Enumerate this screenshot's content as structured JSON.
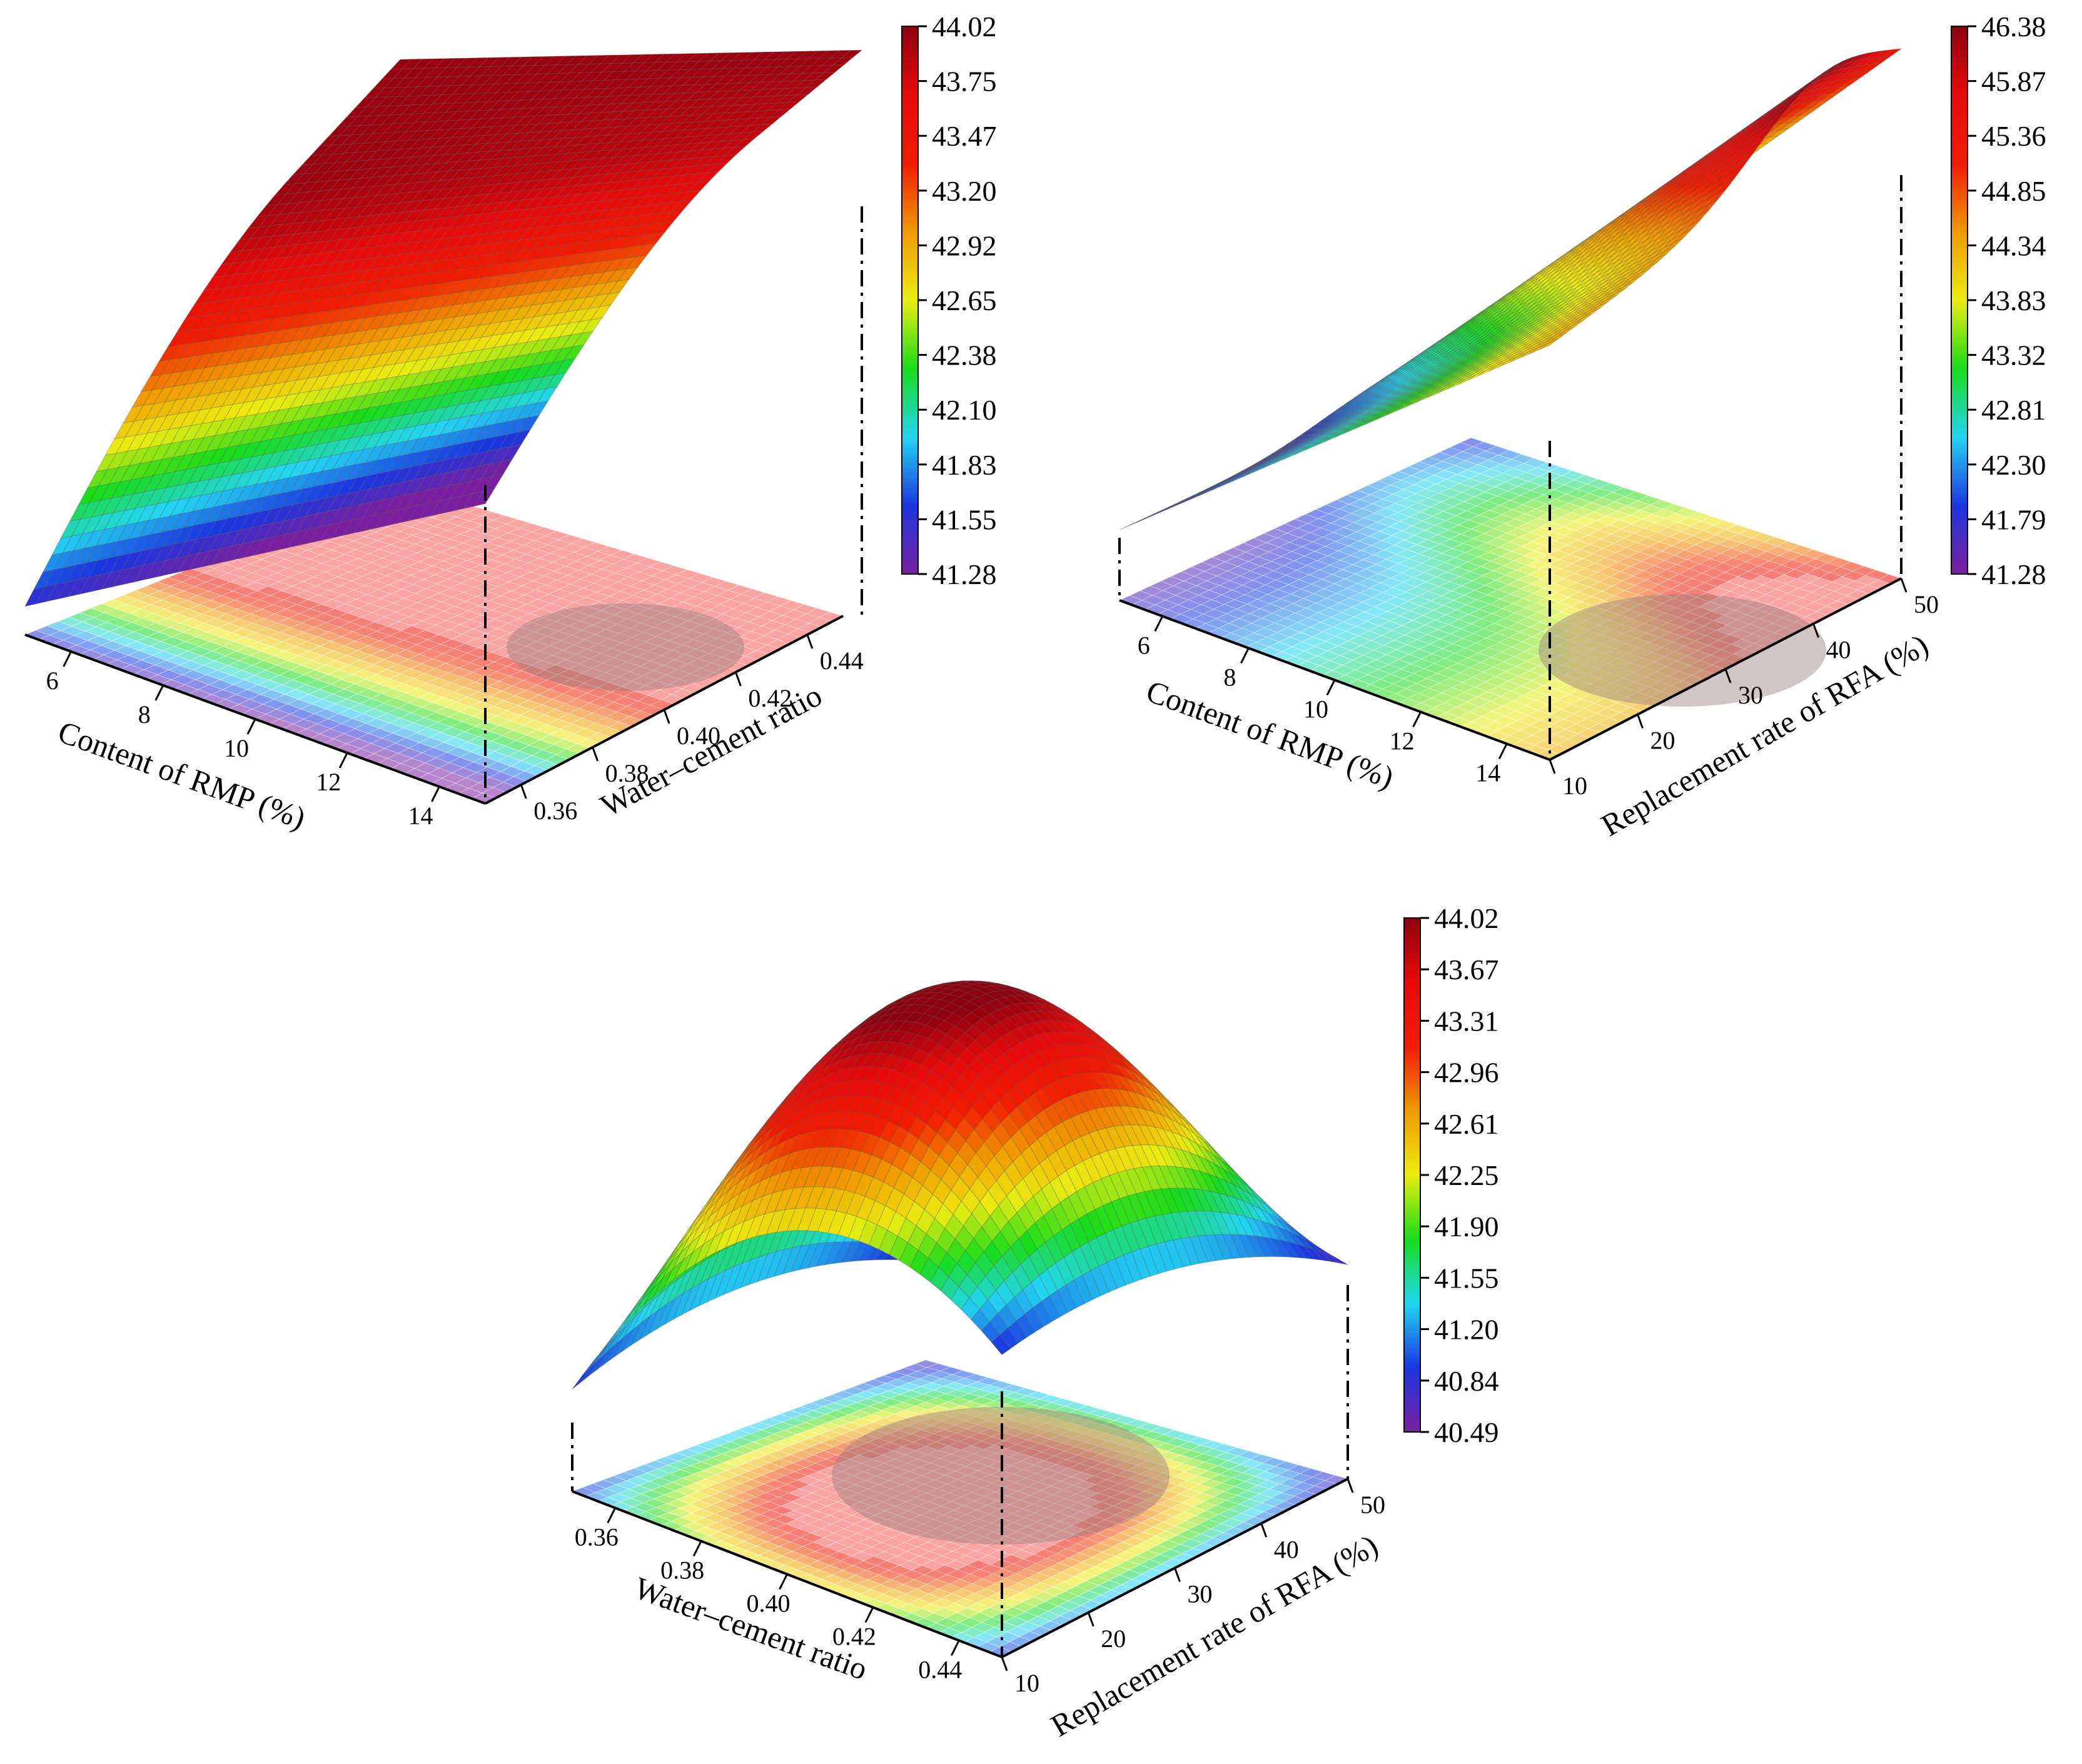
{
  "figure": {
    "title": ""
  },
  "colormap": [
    "#7a1fa0",
    "#1a36e0",
    "#22d6f2",
    "#18dc18",
    "#ecec10",
    "#f09a00",
    "#f21a00",
    "#e80a0a",
    "#8c0010"
  ],
  "floor_color": "#f9a3a3",
  "chart_data": [
    {
      "id": "a",
      "type": "surface3d",
      "x": {
        "label": "Content of RMP (%)",
        "ticks": [
          "6",
          "8",
          "10",
          "12",
          "14"
        ],
        "range": [
          5,
          15
        ]
      },
      "y": {
        "label": "Water–cement ratio",
        "ticks": [
          "0.36",
          "0.38",
          "0.40",
          "0.42",
          "0.44"
        ],
        "range": [
          0.35,
          0.45
        ]
      },
      "z": {
        "range": [
          41.28,
          44.02
        ]
      },
      "colorbar": {
        "ticks": [
          "44.02",
          "43.75",
          "43.47",
          "43.20",
          "42.92",
          "42.65",
          "42.38",
          "42.10",
          "41.83",
          "41.55",
          "41.28"
        ]
      }
    },
    {
      "id": "b",
      "type": "surface3d",
      "x": {
        "label": "Content of RMP (%)",
        "ticks": [
          "6",
          "8",
          "10",
          "12",
          "14"
        ],
        "range": [
          5,
          15
        ]
      },
      "y": {
        "label": "Replacement rate of RFA (%)",
        "ticks": [
          "10",
          "20",
          "30",
          "40",
          "50"
        ],
        "range": [
          10,
          50
        ]
      },
      "z": {
        "range": [
          41.28,
          46.38
        ]
      },
      "colorbar": {
        "ticks": [
          "46.38",
          "45.87",
          "45.36",
          "44.85",
          "44.34",
          "43.83",
          "43.32",
          "42.81",
          "42.30",
          "41.79",
          "41.28"
        ]
      }
    },
    {
      "id": "c",
      "type": "surface3d",
      "x": {
        "label": "Water–cement ratio",
        "ticks": [
          "0.36",
          "0.38",
          "0.40",
          "0.42",
          "0.44"
        ],
        "range": [
          0.35,
          0.45
        ]
      },
      "y": {
        "label": "Replacement rate of RFA (%)",
        "ticks": [
          "10",
          "20",
          "30",
          "40",
          "50"
        ],
        "range": [
          10,
          50
        ]
      },
      "z": {
        "range": [
          40.49,
          44.02
        ]
      },
      "colorbar": {
        "ticks": [
          "44.02",
          "43.67",
          "43.31",
          "42.96",
          "42.61",
          "42.25",
          "41.90",
          "41.55",
          "41.20",
          "40.84",
          "40.49"
        ]
      }
    }
  ]
}
